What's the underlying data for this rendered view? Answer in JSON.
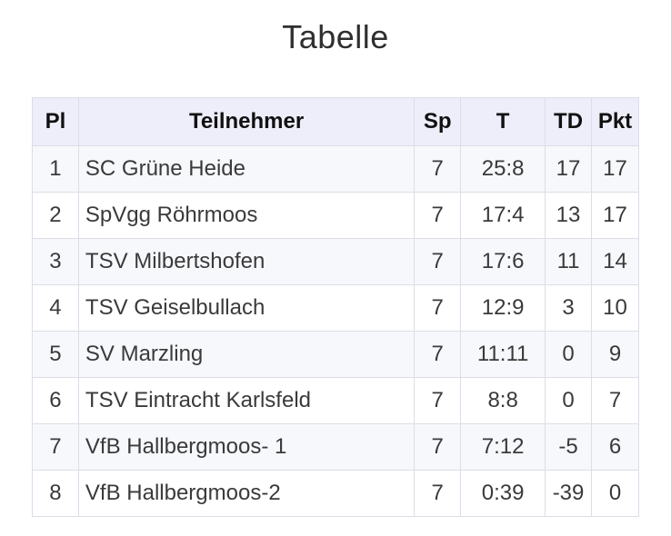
{
  "title": "Tabelle",
  "table": {
    "headers": {
      "pl": "Pl",
      "teilnehmer": "Teilnehmer",
      "sp": "Sp",
      "t": "T",
      "td": "TD",
      "pkt": "Pkt"
    },
    "rows": [
      {
        "pl": "1",
        "name": "SC Grüne Heide",
        "sp": "7",
        "t": "25:8",
        "td": "17",
        "pkt": "17"
      },
      {
        "pl": "2",
        "name": "SpVgg Röhrmoos",
        "sp": "7",
        "t": "17:4",
        "td": "13",
        "pkt": "17"
      },
      {
        "pl": "3",
        "name": "TSV Milbertshofen",
        "sp": "7",
        "t": "17:6",
        "td": "11",
        "pkt": "14"
      },
      {
        "pl": "4",
        "name": "TSV Geiselbullach",
        "sp": "7",
        "t": "12:9",
        "td": "3",
        "pkt": "10"
      },
      {
        "pl": "5",
        "name": "SV Marzling",
        "sp": "7",
        "t": "11:11",
        "td": "0",
        "pkt": "9"
      },
      {
        "pl": "6",
        "name": "TSV Eintracht Karlsfeld",
        "sp": "7",
        "t": "8:8",
        "td": "0",
        "pkt": "7"
      },
      {
        "pl": "7",
        "name": "VfB Hallbergmoos- 1",
        "sp": "7",
        "t": "7:12",
        "td": "-5",
        "pkt": "6"
      },
      {
        "pl": "8",
        "name": "VfB Hallbergmoos-2",
        "sp": "7",
        "t": "0:39",
        "td": "-39",
        "pkt": "0"
      }
    ]
  }
}
